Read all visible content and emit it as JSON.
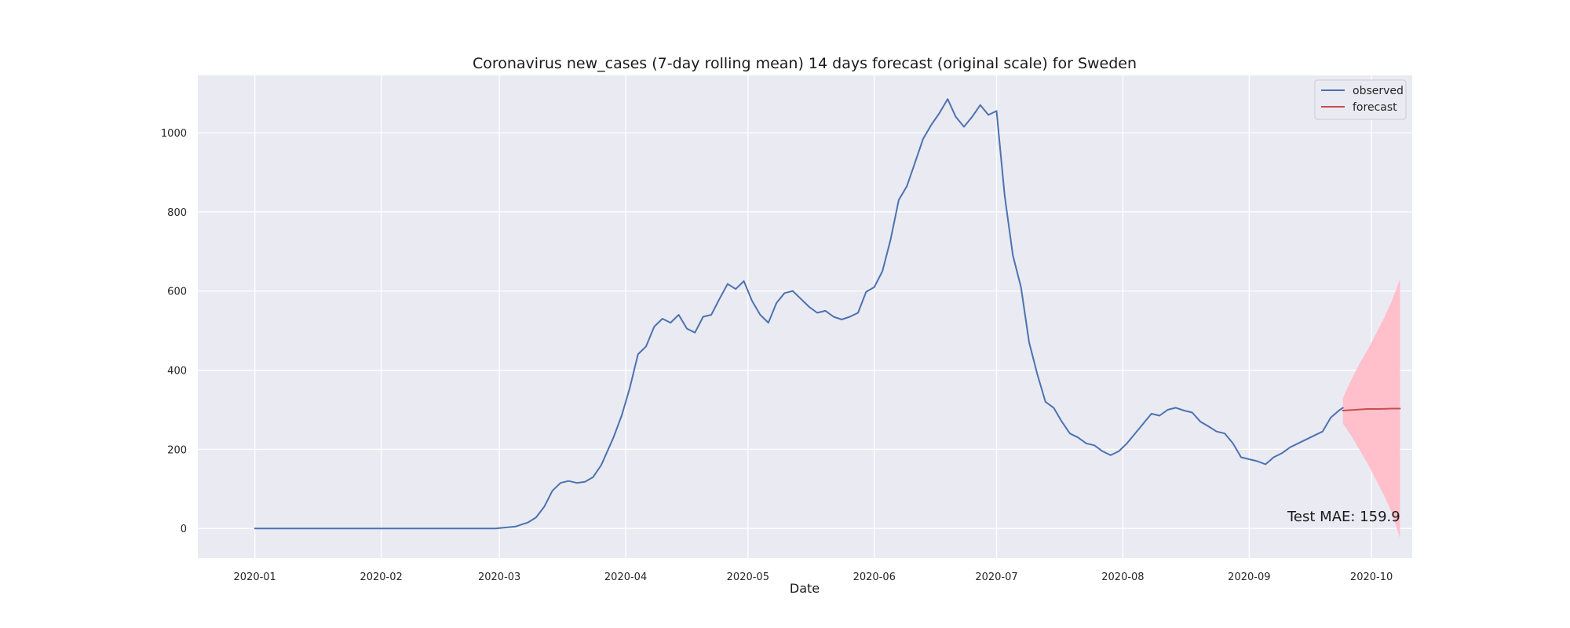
{
  "chart_data": {
    "type": "line",
    "title": "Coronavirus new_cases (7-day rolling mean) 14 days forecast (original scale) for Sweden",
    "xlabel": "Date",
    "ylabel": "",
    "xlim": [
      "2019-12-18",
      "2020-10-11"
    ],
    "ylim": [
      -75,
      1145
    ],
    "grid": true,
    "legend_position": "top-right",
    "x_ticks": [
      "2020-01",
      "2020-02",
      "2020-03",
      "2020-04",
      "2020-05",
      "2020-06",
      "2020-07",
      "2020-08",
      "2020-09",
      "2020-10"
    ],
    "y_ticks": [
      0,
      200,
      400,
      600,
      800,
      1000
    ],
    "series": [
      {
        "name": "observed",
        "color": "#4c72b0",
        "x": [
          "2020-01-01",
          "2020-02-29",
          "2020-03-02",
          "2020-03-05",
          "2020-03-08",
          "2020-03-10",
          "2020-03-12",
          "2020-03-14",
          "2020-03-16",
          "2020-03-18",
          "2020-03-20",
          "2020-03-22",
          "2020-03-24",
          "2020-03-26",
          "2020-03-29",
          "2020-03-31",
          "2020-04-02",
          "2020-04-04",
          "2020-04-06",
          "2020-04-08",
          "2020-04-10",
          "2020-04-12",
          "2020-04-14",
          "2020-04-16",
          "2020-04-18",
          "2020-04-20",
          "2020-04-22",
          "2020-04-24",
          "2020-04-26",
          "2020-04-28",
          "2020-04-30",
          "2020-05-02",
          "2020-05-04",
          "2020-05-06",
          "2020-05-08",
          "2020-05-10",
          "2020-05-12",
          "2020-05-14",
          "2020-05-16",
          "2020-05-18",
          "2020-05-20",
          "2020-05-22",
          "2020-05-24",
          "2020-05-26",
          "2020-05-28",
          "2020-05-30",
          "2020-06-01",
          "2020-06-03",
          "2020-06-05",
          "2020-06-07",
          "2020-06-09",
          "2020-06-11",
          "2020-06-13",
          "2020-06-15",
          "2020-06-17",
          "2020-06-19",
          "2020-06-21",
          "2020-06-23",
          "2020-06-25",
          "2020-06-27",
          "2020-06-29",
          "2020-07-01",
          "2020-07-03",
          "2020-07-05",
          "2020-07-07",
          "2020-07-09",
          "2020-07-11",
          "2020-07-13",
          "2020-07-15",
          "2020-07-17",
          "2020-07-19",
          "2020-07-21",
          "2020-07-23",
          "2020-07-25",
          "2020-07-27",
          "2020-07-29",
          "2020-07-31",
          "2020-08-02",
          "2020-08-04",
          "2020-08-06",
          "2020-08-08",
          "2020-08-10",
          "2020-08-12",
          "2020-08-14",
          "2020-08-16",
          "2020-08-18",
          "2020-08-20",
          "2020-08-22",
          "2020-08-24",
          "2020-08-26",
          "2020-08-28",
          "2020-08-30",
          "2020-09-01",
          "2020-09-03",
          "2020-09-05",
          "2020-09-07",
          "2020-09-09",
          "2020-09-11",
          "2020-09-13",
          "2020-09-15",
          "2020-09-17",
          "2020-09-19",
          "2020-09-21",
          "2020-09-23",
          "2020-09-24"
        ],
        "y": [
          0,
          0,
          2,
          5,
          15,
          28,
          55,
          95,
          115,
          120,
          115,
          118,
          130,
          160,
          230,
          285,
          355,
          440,
          460,
          510,
          530,
          520,
          540,
          505,
          495,
          535,
          540,
          580,
          618,
          605,
          625,
          575,
          540,
          520,
          570,
          595,
          600,
          580,
          560,
          545,
          550,
          535,
          528,
          535,
          545,
          598,
          610,
          650,
          730,
          830,
          865,
          925,
          985,
          1020,
          1050,
          1085,
          1040,
          1015,
          1040,
          1070,
          1045,
          1055,
          840,
          690,
          610,
          470,
          390,
          320,
          305,
          270,
          240,
          230,
          215,
          210,
          195,
          185,
          195,
          215,
          240,
          265,
          290,
          285,
          300,
          305,
          298,
          293,
          270,
          258,
          245,
          240,
          215,
          180,
          175,
          170,
          162,
          180,
          190,
          205,
          215,
          225,
          235,
          245,
          280,
          298,
          305
        ]
      },
      {
        "name": "forecast",
        "color": "#c44e52",
        "x": [
          "2020-09-24",
          "2020-09-27",
          "2020-09-30",
          "2020-10-03",
          "2020-10-06",
          "2020-10-08"
        ],
        "y": [
          298,
          300,
          302,
          302,
          303,
          303
        ]
      }
    ],
    "confidence_interval": {
      "color": "#ffc0cb",
      "x": [
        "2020-09-24",
        "2020-09-26",
        "2020-09-28",
        "2020-09-30",
        "2020-10-02",
        "2020-10-04",
        "2020-10-06",
        "2020-10-08"
      ],
      "lower": [
        265,
        235,
        200,
        165,
        125,
        85,
        40,
        -25
      ],
      "upper": [
        330,
        375,
        415,
        450,
        490,
        530,
        575,
        630
      ]
    },
    "annotations": [
      {
        "text": "Test MAE: 159.9"
      }
    ]
  }
}
